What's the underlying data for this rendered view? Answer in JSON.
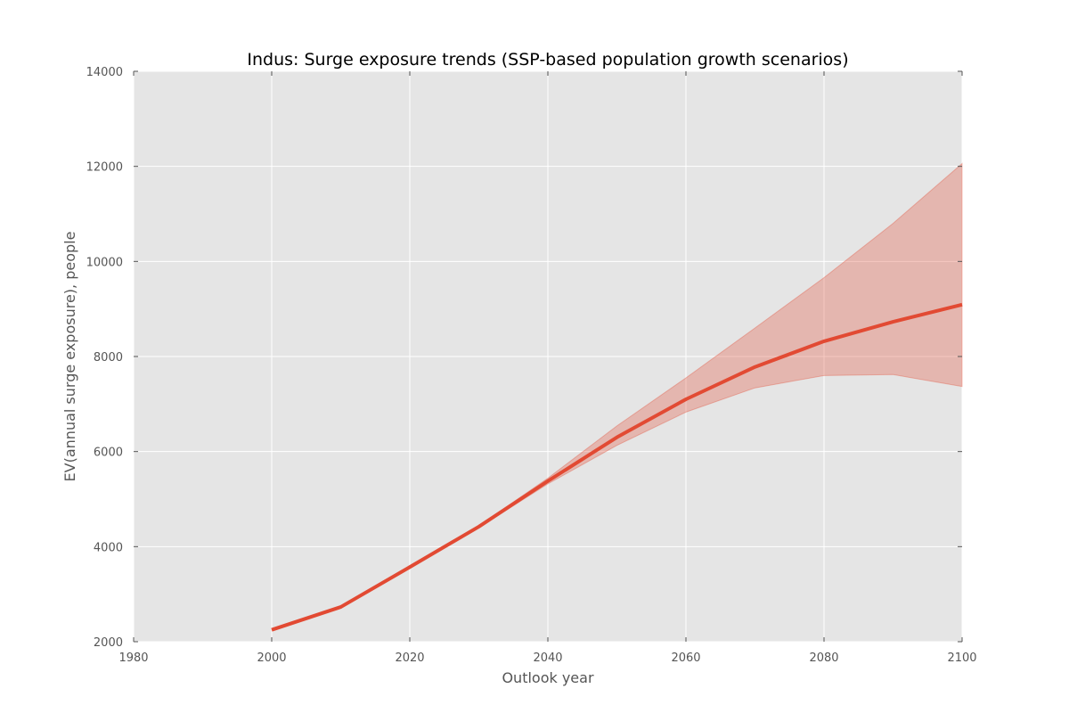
{
  "chart_data": {
    "type": "line",
    "title": "Indus: Surge exposure trends (SSP-based population growth scenarios)",
    "xlabel": "Outlook year",
    "ylabel": "EV(annual surge exposure), people",
    "xlim": [
      1980,
      2100
    ],
    "ylim": [
      2000,
      14000
    ],
    "x_ticks": [
      1980,
      2000,
      2020,
      2040,
      2060,
      2080,
      2100
    ],
    "y_ticks": [
      2000,
      4000,
      6000,
      8000,
      10000,
      12000,
      14000
    ],
    "x_tick_labels": [
      "1980",
      "2000",
      "2020",
      "2040",
      "2060",
      "2080",
      "2100"
    ],
    "y_tick_labels": [
      "2000",
      "4000",
      "6000",
      "8000",
      "10000",
      "12000",
      "14000"
    ],
    "grid": true,
    "series": [
      {
        "x": [
          2000,
          2010,
          2020,
          2030,
          2040,
          2050,
          2060,
          2070,
          2080,
          2090,
          2100
        ],
        "values": [
          2250,
          2730,
          3570,
          4420,
          5380,
          6300,
          7100,
          7780,
          8320,
          8730,
          9090
        ],
        "color": "#e24a33"
      }
    ],
    "band": {
      "x": [
        2000,
        2010,
        2020,
        2030,
        2040,
        2050,
        2060,
        2070,
        2080,
        2090,
        2100
      ],
      "lower": [
        2250,
        2730,
        3570,
        4400,
        5320,
        6130,
        6830,
        7340,
        7600,
        7620,
        7370
      ],
      "upper": [
        2250,
        2730,
        3570,
        4440,
        5440,
        6540,
        7550,
        8600,
        9660,
        10800,
        12060
      ],
      "color": "#e24a33",
      "opacity": 0.3
    },
    "colors": {
      "plot_background": "#e5e5e5",
      "grid": "#ffffff",
      "line": "#e24a33"
    }
  }
}
